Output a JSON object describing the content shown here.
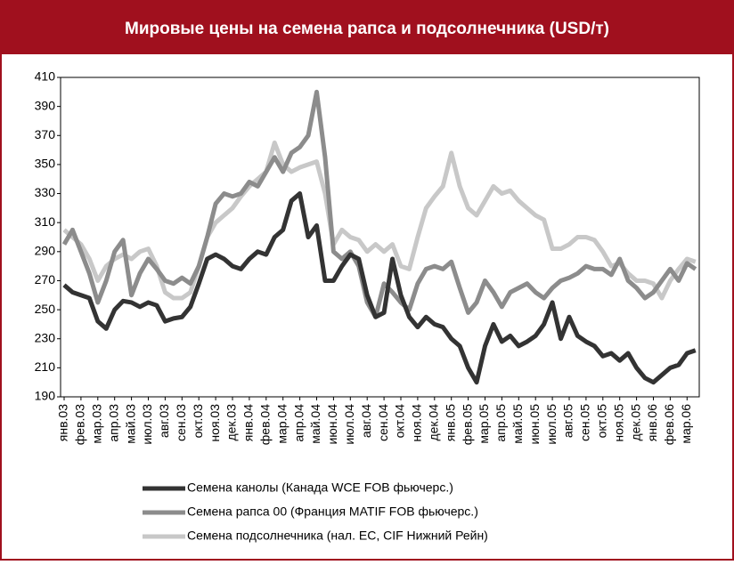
{
  "chart_data": {
    "type": "line",
    "title": "Мировые цены на семена рапса и подсолнечника (USD/т)",
    "categories": [
      "янв.03",
      null,
      "фев.03",
      null,
      "мар.03",
      null,
      "апр.03",
      null,
      "май.03",
      null,
      "июл.03",
      null,
      "авг.03",
      null,
      "сен.03",
      null,
      "окт.03",
      null,
      "ноя.03",
      null,
      "дек.03",
      null,
      "янв.04",
      null,
      "фев.04",
      null,
      "мар.04",
      null,
      "апр.04",
      null,
      "май.04",
      null,
      "июн.04",
      null,
      "июл.04",
      null,
      "авг.04",
      null,
      "сен.04",
      null,
      "окт.04",
      null,
      "ноя.04",
      null,
      "дек.04",
      null,
      "янв.05",
      null,
      "фев.05",
      null,
      "мар.05",
      null,
      "апр.05",
      null,
      "май.05",
      null,
      "июн.05",
      null,
      "июл.05",
      null,
      "авг.05",
      null,
      "сен.05",
      null,
      "окт.05",
      null,
      "ноя.05",
      null,
      "дек.05",
      null,
      "янв.06",
      null,
      "фев.06",
      null,
      "мар.06",
      null
    ],
    "series": [
      {
        "name": "Семена канолы (Канада WCE FOB фьючерс.)",
        "color": "#333333",
        "values": [
          267,
          262,
          260,
          258,
          242,
          237,
          250,
          256,
          255,
          252,
          255,
          253,
          242,
          244,
          245,
          252,
          268,
          285,
          288,
          285,
          280,
          278,
          285,
          290,
          288,
          300,
          305,
          325,
          330,
          300,
          308,
          270,
          270,
          280,
          288,
          285,
          260,
          245,
          248,
          285,
          260,
          245,
          238,
          245,
          240,
          238,
          230,
          225,
          210,
          200,
          225,
          240,
          228,
          232,
          225,
          228,
          232,
          240,
          255,
          230,
          245,
          232,
          228,
          225,
          218,
          220,
          215,
          220,
          210,
          203,
          200,
          205,
          210,
          212,
          220,
          222
        ]
      },
      {
        "name": "Семена рапса 00 (Франция MATIF FOB фьючерс.)",
        "color": "#8c8c8c",
        "values": [
          295,
          305,
          290,
          275,
          255,
          270,
          290,
          298,
          260,
          275,
          285,
          278,
          270,
          268,
          272,
          268,
          280,
          300,
          323,
          330,
          328,
          330,
          338,
          335,
          345,
          355,
          345,
          358,
          362,
          370,
          400,
          355,
          290,
          285,
          290,
          280,
          255,
          245,
          268,
          262,
          255,
          250,
          268,
          278,
          280,
          278,
          283,
          265,
          248,
          255,
          270,
          262,
          252,
          262,
          265,
          268,
          262,
          258,
          265,
          270,
          272,
          275,
          280,
          278,
          278,
          274,
          285,
          270,
          265,
          258,
          262,
          270,
          278,
          270,
          282,
          278
        ]
      },
      {
        "name": "Семена подсолнечника (нал. ЕС, CIF Нижний Рейн)",
        "color": "#c8c8c8",
        "values": [
          305,
          300,
          295,
          285,
          270,
          280,
          285,
          288,
          285,
          290,
          292,
          280,
          262,
          258,
          258,
          262,
          280,
          300,
          310,
          315,
          320,
          328,
          335,
          340,
          345,
          365,
          350,
          345,
          348,
          350,
          352,
          330,
          295,
          305,
          300,
          298,
          290,
          295,
          290,
          295,
          280,
          278,
          300,
          320,
          328,
          335,
          358,
          335,
          320,
          315,
          325,
          335,
          330,
          332,
          325,
          320,
          315,
          312,
          292,
          292,
          295,
          300,
          300,
          298,
          290,
          280,
          282,
          275,
          270,
          270,
          268,
          258,
          270,
          278,
          285,
          283
        ]
      }
    ],
    "ylim": [
      190,
      410
    ],
    "yticks": [
      190,
      210,
      230,
      250,
      270,
      290,
      310,
      330,
      350,
      370,
      390,
      410
    ]
  }
}
